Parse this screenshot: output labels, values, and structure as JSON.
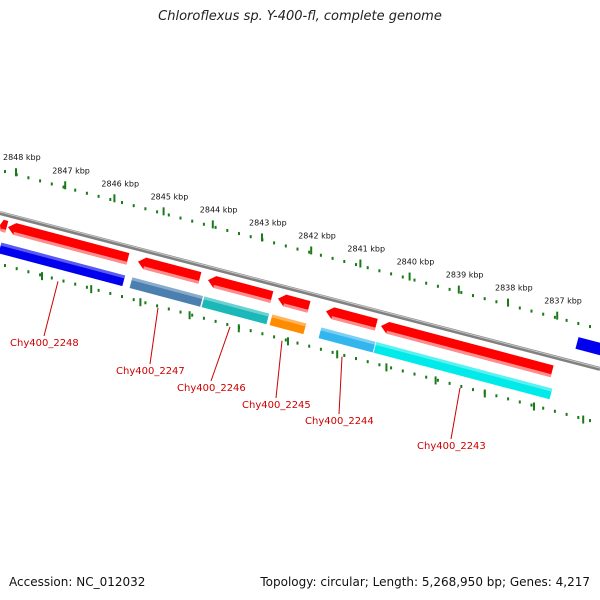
{
  "title": "Chloroflexus sp. Y-400-fl, complete genome",
  "footer": {
    "accession": "Accession: NC_012032",
    "stats": "Topology: circular; Length: 5,268,950 bp; Genes: 4,217"
  },
  "colors": {
    "backbone": "#808080",
    "ruler": "#1a7a1a",
    "gene_arrow": "#ff0000",
    "label": "#cc0000"
  },
  "ticks": [
    "2848 kbp",
    "2847 kbp",
    "2846 kbp",
    "2845 kbp",
    "2844 kbp",
    "2843 kbp",
    "2842 kbp",
    "2841 kbp",
    "2840 kbp",
    "2839 kbp",
    "2838 kbp",
    "2837 kbp"
  ],
  "genes": [
    {
      "label": "Chy400_2248",
      "color": "#0000ee"
    },
    {
      "label": "Chy400_2247",
      "color": "#4a7fb0"
    },
    {
      "label": "Chy400_2246",
      "color": "#1ab8b8"
    },
    {
      "label": "Chy400_2245",
      "color": "#ff8c00"
    },
    {
      "label": "Chy400_2244",
      "color": "#33b5ee"
    },
    {
      "label": "Chy400_2243",
      "color": "#00eaea"
    }
  ]
}
